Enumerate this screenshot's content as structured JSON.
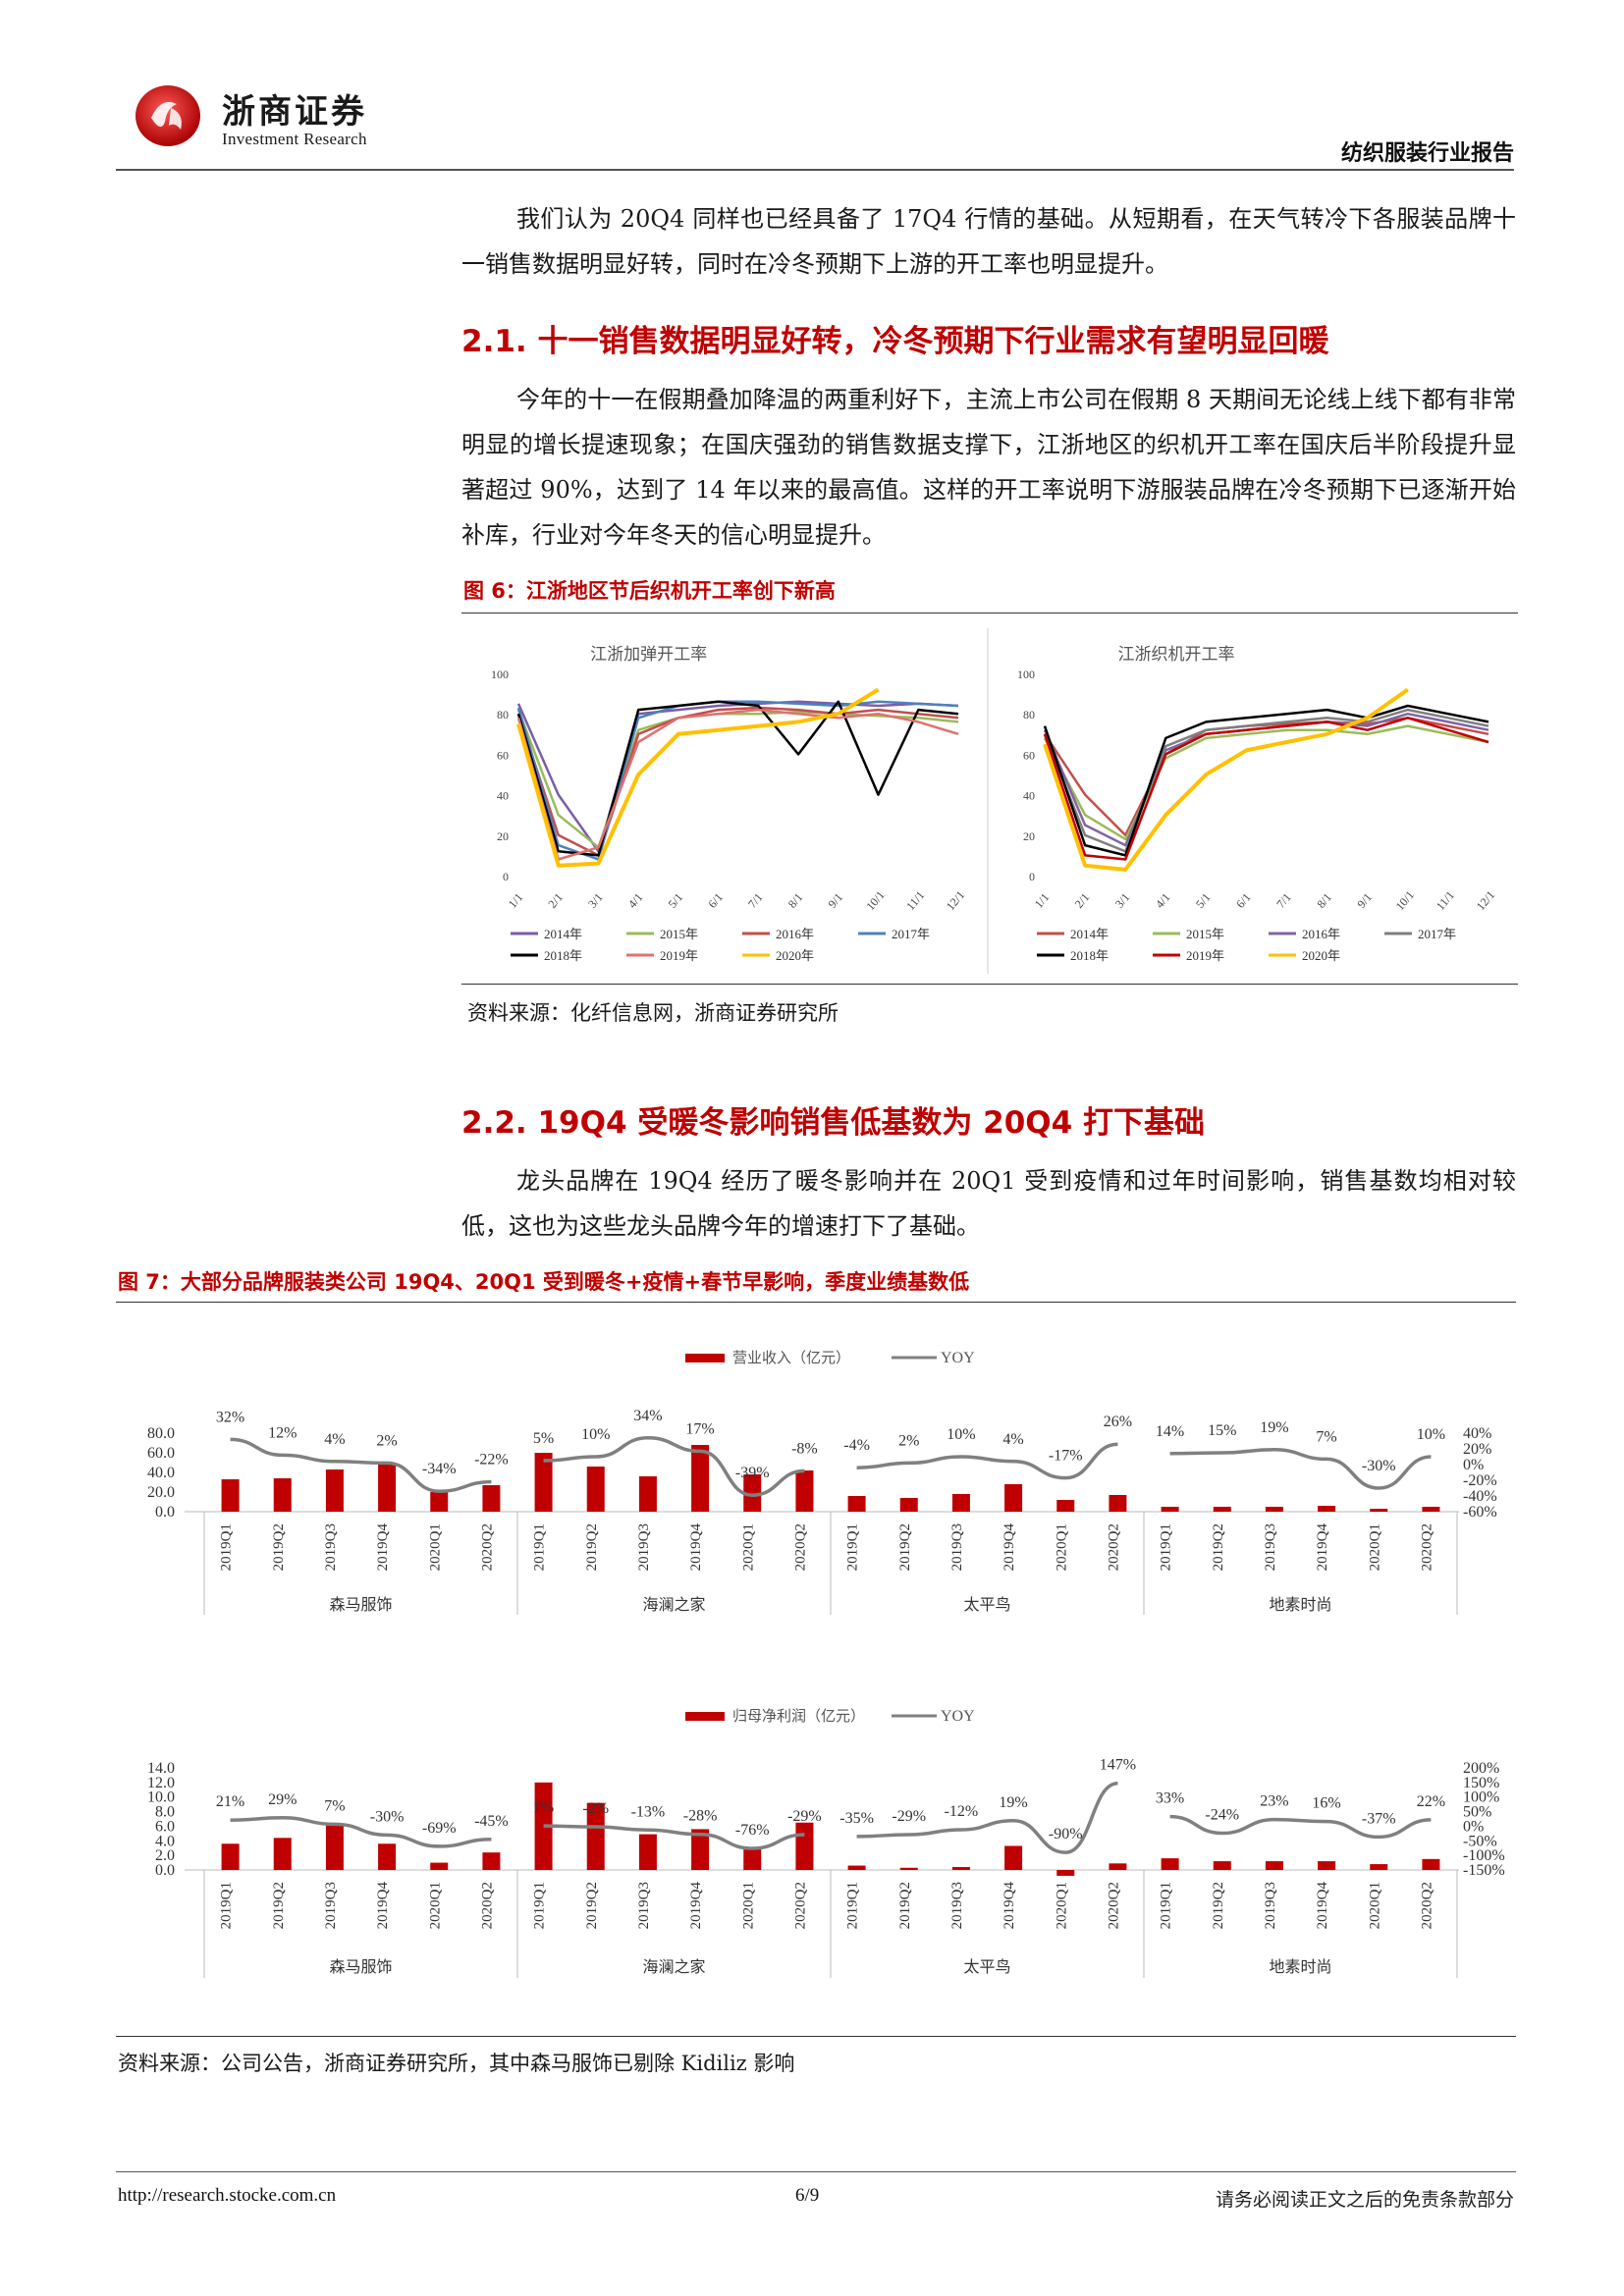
{
  "header": {
    "logo_cn": "浙商证券",
    "logo_en": "Investment Research",
    "report_type": "纺织服装行业报告"
  },
  "body": {
    "intro": "我们认为 20Q4 同样也已经具备了 17Q4 行情的基础。从短期看，在天气转冷下各服装品牌十一销售数据明显好转，同时在冷冬预期下上游的开工率也明显提升。",
    "s21_heading": "2.1. 十一销售数据明显好转，冷冬预期下行业需求有望明显回暖",
    "s21_para": "今年的十一在假期叠加降温的两重利好下，主流上市公司在假期 8 天期间无论线上线下都有非常明显的增长提速现象；在国庆强劲的销售数据支撑下，江浙地区的织机开工率在国庆后半阶段提升显著超过 90%，达到了 14 年以来的最高值。这样的开工率说明下游服装品牌在冷冬预期下已逐渐开始补库，行业对今年冬天的信心明显提升。",
    "fig6_title": "图 6：江浙地区节后织机开工率创下新高",
    "fig6_source": "资料来源：化纤信息网，浙商证券研究所",
    "s22_heading": "2.2. 19Q4 受暖冬影响销售低基数为 20Q4 打下基础",
    "s22_para": "龙头品牌在 19Q4 经历了暖冬影响并在 20Q1 受到疫情和过年时间影响，销售基数均相对较低，这也为这些龙头品牌今年的增速打下了基础。",
    "fig7_title": "图 7：大部分品牌服装类公司 19Q4、20Q1 受到暖冬+疫情+春节早影响，季度业绩基数低",
    "fig7_source": "资料来源：公司公告，浙商证券研究所，其中森马服饰已剔除 Kidiliz 影响"
  },
  "footer": {
    "url": "http://research.stocke.com.cn",
    "page": "6/9",
    "disclaimer": "请务必阅读正文之后的免责条款部分"
  },
  "colors": {
    "accent_red": "#c00000",
    "bar_red": "#c00000",
    "yoy_gray": "#808080"
  },
  "chart_data": [
    {
      "type": "line",
      "title": "江浙加弹开工率",
      "x_ticks": [
        "1/1",
        "2/1",
        "3/1",
        "4/1",
        "5/1",
        "6/1",
        "7/1",
        "8/1",
        "9/1",
        "10/1",
        "11/1",
        "12/1"
      ],
      "y_ticks": [
        "0",
        "20",
        "40",
        "60",
        "80",
        "100"
      ],
      "ylim": [
        0,
        100
      ],
      "legend": [
        "2014年",
        "2015年",
        "2016年",
        "2017年",
        "2018年",
        "2019年",
        "2020年"
      ],
      "series": [
        {
          "name": "2014年",
          "color": "#7b5ea7",
          "values": [
            85,
            40,
            12,
            80,
            82,
            84,
            85,
            86,
            85,
            84,
            85,
            84
          ]
        },
        {
          "name": "2015年",
          "color": "#9bbb59",
          "values": [
            82,
            30,
            14,
            72,
            78,
            80,
            80,
            81,
            80,
            79,
            78,
            76
          ]
        },
        {
          "name": "2016年",
          "color": "#c0504d",
          "values": [
            80,
            20,
            10,
            70,
            78,
            82,
            83,
            82,
            80,
            82,
            80,
            78
          ]
        },
        {
          "name": "2017年",
          "color": "#4f81bd",
          "values": [
            83,
            15,
            8,
            78,
            84,
            86,
            86,
            85,
            84,
            86,
            85,
            84
          ]
        },
        {
          "name": "2018年",
          "color": "#000000",
          "values": [
            80,
            12,
            10,
            82,
            84,
            86,
            84,
            60,
            86,
            40,
            82,
            80
          ]
        },
        {
          "name": "2019年",
          "color": "#e07070",
          "values": [
            78,
            8,
            14,
            66,
            78,
            80,
            82,
            80,
            78,
            80,
            76,
            70
          ]
        },
        {
          "name": "2020年",
          "color": "#ffc000",
          "values": [
            75,
            5,
            6,
            50,
            70,
            72,
            74,
            76,
            80,
            92,
            null,
            null
          ]
        }
      ]
    },
    {
      "type": "line",
      "title": "江浙织机开工率",
      "x_ticks": [
        "1/1",
        "2/1",
        "3/1",
        "4/1",
        "5/1",
        "6/1",
        "7/1",
        "8/1",
        "9/1",
        "10/1",
        "11/1",
        "12/1"
      ],
      "y_ticks": [
        "0",
        "20",
        "40",
        "60",
        "80",
        "100"
      ],
      "ylim": [
        0,
        100
      ],
      "legend": [
        "2014年",
        "2015年",
        "2016年",
        "2017年",
        "2018年",
        "2019年",
        "2020年"
      ],
      "series": [
        {
          "name": "2014年",
          "color": "#c0504d",
          "values": [
            70,
            40,
            20,
            60,
            72,
            74,
            75,
            76,
            75,
            78,
            74,
            70
          ]
        },
        {
          "name": "2015年",
          "color": "#9bbb59",
          "values": [
            68,
            30,
            18,
            58,
            68,
            70,
            72,
            72,
            70,
            74,
            70,
            66
          ]
        },
        {
          "name": "2016年",
          "color": "#8064a2",
          "values": [
            72,
            25,
            15,
            62,
            70,
            72,
            74,
            76,
            74,
            80,
            76,
            72
          ]
        },
        {
          "name": "2017年",
          "color": "#7f7f7f",
          "values": [
            70,
            20,
            12,
            64,
            72,
            74,
            76,
            78,
            76,
            82,
            78,
            74
          ]
        },
        {
          "name": "2018年",
          "color": "#000000",
          "values": [
            74,
            15,
            10,
            68,
            76,
            78,
            80,
            82,
            78,
            84,
            80,
            76
          ]
        },
        {
          "name": "2019年",
          "color": "#c00000",
          "values": [
            70,
            10,
            8,
            60,
            70,
            72,
            74,
            76,
            72,
            78,
            72,
            66
          ]
        },
        {
          "name": "2020年",
          "color": "#ffc000",
          "values": [
            65,
            5,
            3,
            30,
            50,
            62,
            66,
            70,
            78,
            92,
            null,
            null
          ]
        }
      ]
    },
    {
      "type": "bar",
      "legend": [
        "营业收入（亿元）",
        "YOY"
      ],
      "y_left_ticks": [
        "80.0",
        "60.0",
        "40.0",
        "20.0",
        "0.0"
      ],
      "ylim_left": [
        0,
        80
      ],
      "y_right_ticks": [
        "40%",
        "20%",
        "0%",
        "-20%",
        "-40%",
        "-60%"
      ],
      "ylim_right": [
        -60,
        40
      ],
      "categories": [
        "2019Q1",
        "2019Q2",
        "2019Q3",
        "2019Q4",
        "2020Q1",
        "2020Q2"
      ],
      "groups": [
        {
          "name": "森马服饰",
          "values": [
            33,
            34,
            43,
            50,
            20,
            27
          ],
          "yoy": [
            32,
            12,
            4,
            2,
            -34,
            -22
          ],
          "yoy_labels": [
            "32%",
            "12%",
            "4%",
            "2%",
            "-34%",
            "-22%"
          ]
        },
        {
          "name": "海澜之家",
          "values": [
            60,
            46,
            36,
            68,
            38,
            42
          ],
          "yoy": [
            5,
            10,
            34,
            17,
            -39,
            -8
          ],
          "yoy_labels": [
            "5%",
            "10%",
            "34%",
            "17%",
            "-39%",
            "-8%"
          ]
        },
        {
          "name": "太平鸟",
          "values": [
            16,
            14,
            18,
            28,
            12,
            17
          ],
          "yoy": [
            -4,
            2,
            10,
            4,
            -17,
            26
          ],
          "yoy_labels": [
            "-4%",
            "2%",
            "10%",
            "4%",
            "-17%",
            "26%"
          ]
        },
        {
          "name": "地素时尚",
          "values": [
            5,
            5,
            5,
            6,
            3,
            5
          ],
          "yoy": [
            14,
            15,
            19,
            7,
            -30,
            10
          ],
          "yoy_labels": [
            "14%",
            "15%",
            "19%",
            "7%",
            "-30%",
            "10%"
          ]
        }
      ]
    },
    {
      "type": "bar",
      "legend": [
        "归母净利润（亿元）",
        "YOY"
      ],
      "y_left_ticks": [
        "14.0",
        "12.0",
        "10.0",
        "8.0",
        "6.0",
        "4.0",
        "2.0",
        "0.0"
      ],
      "ylim_left": [
        0,
        14
      ],
      "y_right_ticks": [
        "200%",
        "150%",
        "100%",
        "50%",
        "0%",
        "-50%",
        "-100%",
        "-150%"
      ],
      "ylim_right": [
        -150,
        200
      ],
      "categories": [
        "2019Q1",
        "2019Q2",
        "2019Q3",
        "2019Q4",
        "2020Q1",
        "2020Q2"
      ],
      "groups": [
        {
          "name": "森马服饰",
          "values": [
            3.6,
            4.4,
            6.1,
            3.6,
            1.0,
            2.4
          ],
          "yoy": [
            21,
            29,
            7,
            -30,
            -69,
            -45
          ],
          "yoy_labels": [
            "21%",
            "29%",
            "7%",
            "-30%",
            "-69%",
            "-45%"
          ]
        },
        {
          "name": "海澜之家",
          "values": [
            12.0,
            9.2,
            4.9,
            5.6,
            2.9,
            6.5
          ],
          "yoy": [
            1,
            -2,
            -13,
            -28,
            -76,
            -29
          ],
          "yoy_labels": [
            "1%",
            "-2%",
            "-13%",
            "-28%",
            "-76%",
            "-29%"
          ]
        },
        {
          "name": "太平鸟",
          "values": [
            0.6,
            0.3,
            0.4,
            3.3,
            -0.8,
            0.9
          ],
          "yoy": [
            -35,
            -29,
            -12,
            19,
            -90,
            147
          ],
          "yoy_labels": [
            "-35%",
            "-29%",
            "-12%",
            "19%",
            "-90%",
            "147%"
          ]
        },
        {
          "name": "地素时尚",
          "values": [
            1.6,
            1.2,
            1.2,
            1.2,
            0.8,
            1.5
          ],
          "yoy": [
            33,
            -24,
            23,
            16,
            -37,
            22
          ],
          "yoy_labels": [
            "33%",
            "-24%",
            "23%",
            "16%",
            "-37%",
            "22%"
          ]
        }
      ]
    }
  ]
}
